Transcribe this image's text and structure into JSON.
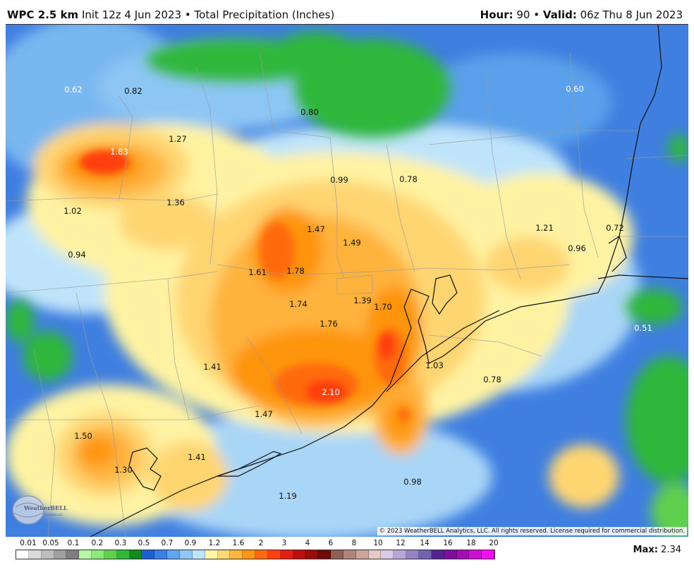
{
  "header": {
    "model": "WPC 2.5 km",
    "init": "Init 12z 4 Jun 2023",
    "separator": "•",
    "field": "Total Precipitation (Inches)",
    "hour_label": "Hour:",
    "hour_value": "90",
    "valid_label": "Valid:",
    "valid_value": "06z Thu 8 Jun 2023"
  },
  "map": {
    "values": [
      {
        "text": "0.62",
        "light": true
      },
      {
        "text": "0.82",
        "light": false
      },
      {
        "text": "0.80",
        "light": false
      },
      {
        "text": "0.60",
        "light": true
      },
      {
        "text": "1.27",
        "light": false
      },
      {
        "text": "1.83",
        "light": true
      },
      {
        "text": "0.99",
        "light": false
      },
      {
        "text": "0.78",
        "light": false
      },
      {
        "text": "1.36",
        "light": false
      },
      {
        "text": "1.02",
        "light": false
      },
      {
        "text": "1.47",
        "light": false
      },
      {
        "text": "1.49",
        "light": false
      },
      {
        "text": "1.21",
        "light": false
      },
      {
        "text": "0.72",
        "light": false
      },
      {
        "text": "0.96",
        "light": false
      },
      {
        "text": "0.94",
        "light": false
      },
      {
        "text": "1.61",
        "light": false
      },
      {
        "text": "1.78",
        "light": false
      },
      {
        "text": "1.39",
        "light": false
      },
      {
        "text": "1.70",
        "light": false
      },
      {
        "text": "1.74",
        "light": false
      },
      {
        "text": "1.76",
        "light": false
      },
      {
        "text": "0.51",
        "light": true
      },
      {
        "text": "1.41",
        "light": false
      },
      {
        "text": "1.03",
        "light": false
      },
      {
        "text": "0.78",
        "light": false
      },
      {
        "text": "2.10",
        "light": true
      },
      {
        "text": "1.47",
        "light": false
      },
      {
        "text": "1.50",
        "light": false
      },
      {
        "text": "1.41",
        "light": false
      },
      {
        "text": "1.30",
        "light": false
      },
      {
        "text": "0.98",
        "light": false
      },
      {
        "text": "1.19",
        "light": false
      }
    ],
    "logo_text": "WeatherBELL",
    "logo_subtext": "Analytics LLC",
    "copyright": "© 2023 WeatherBELL Analytics, LLC. All rights reserved. License required for commercial distribution."
  },
  "legend": {
    "ticks": [
      "0.01",
      "0.05",
      "0.1",
      "0.2",
      "0.3",
      "0.5",
      "0.7",
      "0.9",
      "1.2",
      "1.6",
      "2",
      "3",
      "4",
      "6",
      "8",
      "10",
      "12",
      "14",
      "16",
      "18",
      "20"
    ],
    "colors": [
      "#ffffff",
      "#d9d9d9",
      "#bdbdbd",
      "#a0a0a0",
      "#7f7f7f",
      "#b8f5a6",
      "#8eea78",
      "#5fd04e",
      "#2fb73a",
      "#138a1c",
      "#1d5fd0",
      "#3780e8",
      "#5ea6f2",
      "#8fc8f7",
      "#bde4fb",
      "#fff6a6",
      "#ffd875",
      "#ffb63f",
      "#ff9512",
      "#ff6b0e",
      "#ff3f0f",
      "#e21f12",
      "#be0f0f",
      "#9a0c0c",
      "#6f0b0b",
      "#8e6055",
      "#b08579",
      "#cca59c",
      "#e5c9c2",
      "#d9cbe6",
      "#b9a7d6",
      "#9583c4",
      "#7261b0",
      "#55238f",
      "#7c0f9e",
      "#a60bb8",
      "#cc0dd2",
      "#f00ff0"
    ]
  },
  "max": {
    "label": "Max:",
    "value": "2.34"
  }
}
